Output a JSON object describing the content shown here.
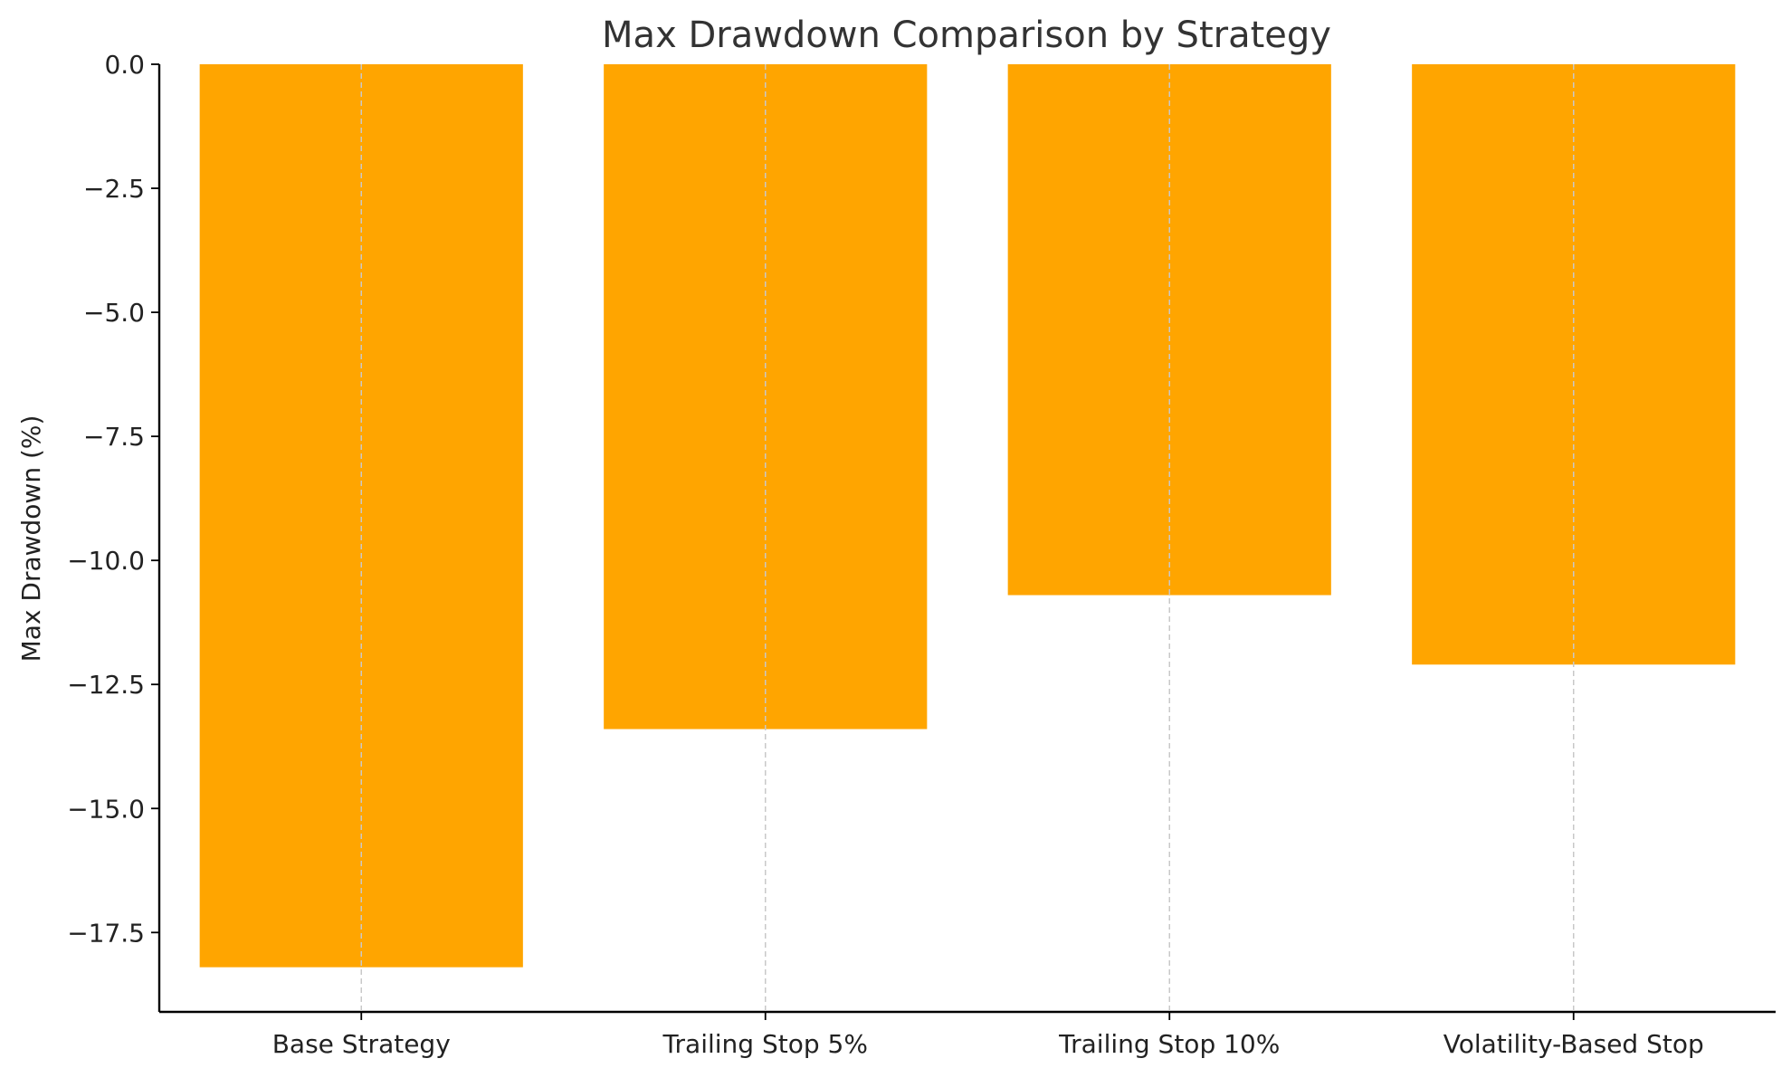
{
  "chart_data": {
    "type": "bar",
    "title": "Max Drawdown Comparison by Strategy",
    "xlabel": "",
    "ylabel": "Max Drawdown (%)",
    "categories": [
      "Base Strategy",
      "Trailing Stop 5%",
      "Trailing Stop 10%",
      "Volatility-Based Stop"
    ],
    "values": [
      -18.2,
      -13.4,
      -10.7,
      -12.1
    ],
    "ylim": [
      -19.1,
      0.0
    ],
    "yticks": [
      0.0,
      -2.5,
      -5.0,
      -7.5,
      -10.0,
      -12.5,
      -15.0,
      -17.5
    ],
    "ytick_labels": [
      "0.0",
      "−2.5",
      "−5.0",
      "−7.5",
      "−10.0",
      "−12.5",
      "−15.0",
      "−17.5"
    ],
    "grid": "vertical dashed",
    "bar_color": "#ffa500"
  }
}
